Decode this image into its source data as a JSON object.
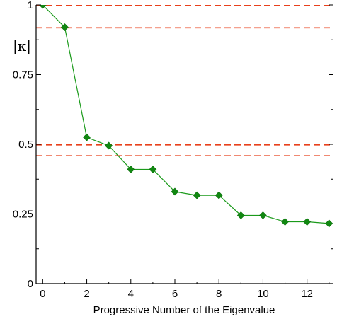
{
  "chart_data": {
    "type": "line",
    "xlabel": "Progressive Number of the Eigenvalue",
    "ylabel": "|κ|",
    "xlim": [
      -0.3,
      13.2
    ],
    "ylim": [
      0,
      1
    ],
    "xticks": [
      0,
      2,
      4,
      6,
      8,
      10,
      12
    ],
    "xtick_labels": [
      "0",
      "2",
      "4",
      "6",
      "8",
      "10",
      "12"
    ],
    "yticks": [
      0,
      0.25,
      0.5,
      0.75,
      1
    ],
    "ytick_labels": [
      "0",
      "0.25",
      "0.5",
      "0.75",
      "1"
    ],
    "grid": false,
    "series": [
      {
        "color": "#1a9a1a",
        "marker": "diamond",
        "x": [
          0,
          1,
          2,
          3,
          4,
          5,
          6,
          7,
          8,
          9,
          10,
          11,
          12,
          13
        ],
        "y": [
          1.0,
          0.92,
          0.525,
          0.495,
          0.41,
          0.41,
          0.33,
          0.317,
          0.317,
          0.245,
          0.245,
          0.222,
          0.222,
          0.216
        ]
      }
    ],
    "reference_lines": [
      {
        "y": 0.998,
        "color": "#e8401c",
        "style": "dashed"
      },
      {
        "y": 0.918,
        "color": "#e8401c",
        "style": "dashed"
      },
      {
        "y": 0.498,
        "color": "#e8401c",
        "style": "dashed"
      },
      {
        "y": 0.459,
        "color": "#e8401c",
        "style": "dashed"
      }
    ]
  }
}
